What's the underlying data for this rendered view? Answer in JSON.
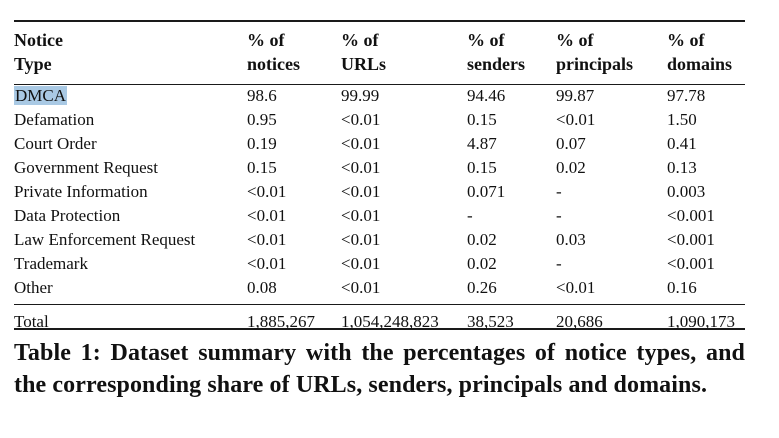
{
  "table": {
    "headers": [
      [
        "Notice",
        "Type"
      ],
      [
        "% of",
        "notices"
      ],
      [
        "% of",
        "URLs"
      ],
      [
        "% of",
        "senders"
      ],
      [
        "% of",
        "principals"
      ],
      [
        "% of",
        "domains"
      ]
    ],
    "rows": [
      [
        "DMCA",
        "98.6",
        "99.99",
        "94.46",
        "99.87",
        "97.78"
      ],
      [
        "Defamation",
        "0.95",
        "<0.01",
        "0.15",
        "<0.01",
        "1.50"
      ],
      [
        "Court Order",
        "0.19",
        "<0.01",
        "4.87",
        "0.07",
        "0.41"
      ],
      [
        "Government Request",
        "0.15",
        "<0.01",
        "0.15",
        "0.02",
        "0.13"
      ],
      [
        "Private Information",
        "<0.01",
        "<0.01",
        "0.071",
        "-",
        "0.003"
      ],
      [
        "Data Protection",
        "<0.01",
        "<0.01",
        "-",
        "-",
        "<0.001"
      ],
      [
        "Law Enforcement Request",
        "<0.01",
        "<0.01",
        "0.02",
        "0.03",
        "<0.001"
      ],
      [
        "Trademark",
        "<0.01",
        "<0.01",
        "0.02",
        "-",
        "<0.001"
      ],
      [
        "Other",
        "0.08",
        "<0.01",
        "0.26",
        "<0.01",
        "0.16"
      ]
    ],
    "total": [
      "Total",
      "1,885,267",
      "1,054,248,823",
      "38,523",
      "20,686",
      "1,090,173"
    ],
    "highlight_color": "#a9c9e4"
  },
  "caption": "Table 1: Dataset summary with the percentages of notice types, and the corresponding share of URLs, senders, principals and domains."
}
